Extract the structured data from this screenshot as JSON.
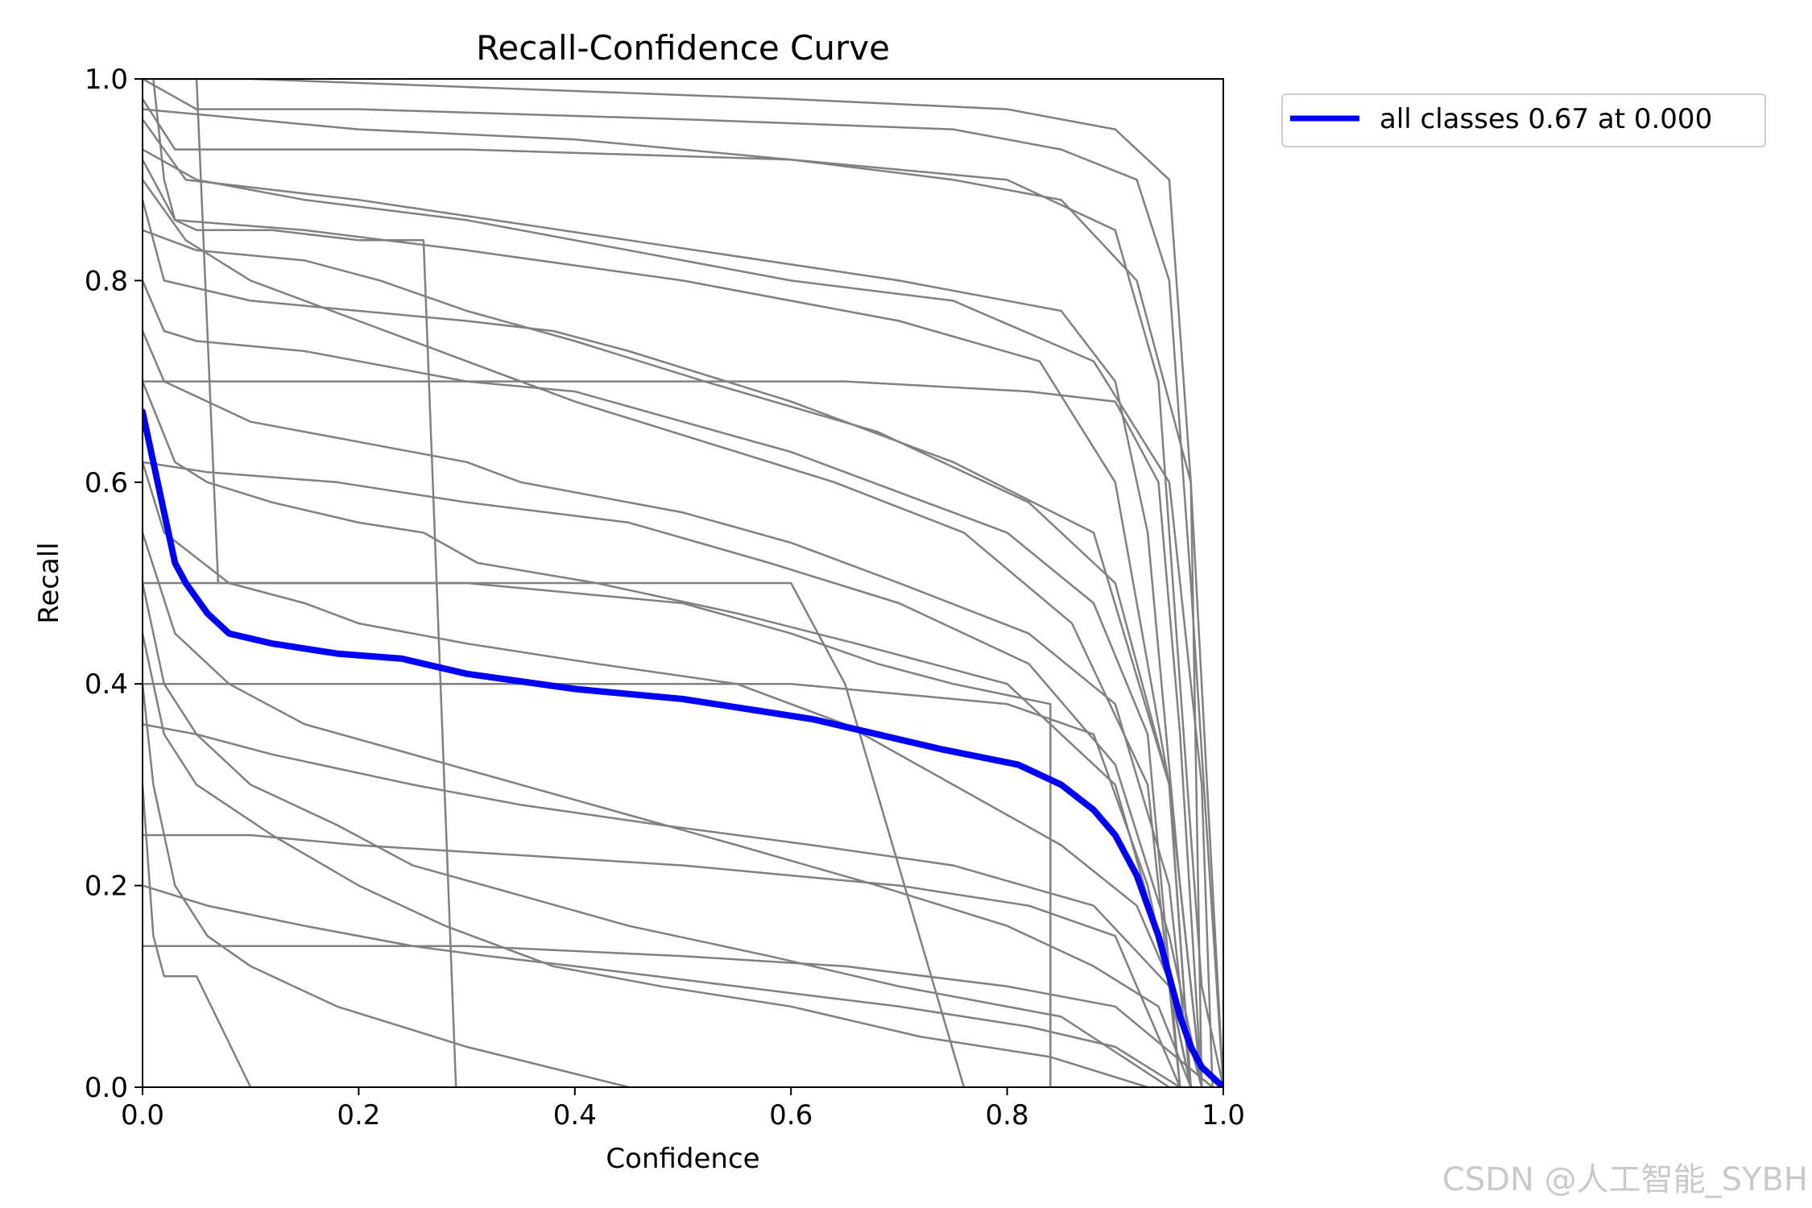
{
  "chart_data": {
    "type": "line",
    "title": "Recall-Confidence Curve",
    "xlabel": "Confidence",
    "ylabel": "Recall",
    "xlim": [
      0,
      1
    ],
    "ylim": [
      0,
      1
    ],
    "x_ticks": [
      "0.0",
      "0.2",
      "0.4",
      "0.6",
      "0.8",
      "1.0"
    ],
    "y_ticks": [
      "0.0",
      "0.2",
      "0.4",
      "0.6",
      "0.8",
      "1.0"
    ],
    "grid": false,
    "legend_position": "outside upper-right",
    "colors": {
      "per_class": "#808080",
      "all_classes": "#0000ff"
    },
    "series": [
      {
        "name": "all classes 0.67 at 0.000",
        "color": "#0000ff",
        "x": [
          0.0,
          0.01,
          0.02,
          0.03,
          0.04,
          0.06,
          0.08,
          0.12,
          0.18,
          0.24,
          0.3,
          0.4,
          0.5,
          0.56,
          0.62,
          0.68,
          0.74,
          0.81,
          0.85,
          0.88,
          0.9,
          0.92,
          0.94,
          0.95,
          0.96,
          0.97,
          0.98,
          0.99,
          1.0
        ],
        "y": [
          0.67,
          0.62,
          0.57,
          0.52,
          0.5,
          0.47,
          0.45,
          0.44,
          0.43,
          0.425,
          0.41,
          0.395,
          0.385,
          0.375,
          0.365,
          0.35,
          0.335,
          0.32,
          0.3,
          0.275,
          0.25,
          0.21,
          0.15,
          0.11,
          0.07,
          0.04,
          0.02,
          0.01,
          0.0
        ]
      }
    ],
    "per_class_curves": [
      {
        "x": [
          0.0,
          0.05,
          0.2,
          0.5,
          0.75,
          0.85,
          0.92,
          0.95,
          0.97,
          1.0
        ],
        "y": [
          1.0,
          0.97,
          0.97,
          0.96,
          0.95,
          0.93,
          0.9,
          0.8,
          0.5,
          0.0
        ]
      },
      {
        "x": [
          0.0,
          0.03,
          0.3,
          0.6,
          0.8,
          0.9,
          0.94,
          0.96,
          0.98,
          1.0
        ],
        "y": [
          0.98,
          0.93,
          0.93,
          0.92,
          0.9,
          0.85,
          0.7,
          0.4,
          0.1,
          0.0
        ]
      },
      {
        "x": [
          0.0,
          0.04,
          0.2,
          0.45,
          0.7,
          0.85,
          0.9,
          0.93,
          0.96,
          0.98
        ],
        "y": [
          0.96,
          0.9,
          0.88,
          0.84,
          0.8,
          0.77,
          0.7,
          0.55,
          0.2,
          0.0
        ]
      },
      {
        "x": [
          0.0,
          0.03,
          0.15,
          0.3,
          0.5,
          0.7,
          0.83,
          0.9,
          0.95,
          0.97
        ],
        "y": [
          0.92,
          0.86,
          0.85,
          0.83,
          0.8,
          0.76,
          0.72,
          0.6,
          0.3,
          0.0
        ]
      },
      {
        "x": [
          0.0,
          0.02,
          0.1,
          0.2,
          0.3,
          0.38,
          0.45,
          0.6,
          0.75,
          0.88,
          0.95,
          0.98
        ],
        "y": [
          0.88,
          0.8,
          0.78,
          0.77,
          0.76,
          0.75,
          0.73,
          0.68,
          0.62,
          0.55,
          0.3,
          0.0
        ]
      },
      {
        "x": [
          0.0,
          0.02,
          0.05,
          0.15,
          0.3,
          0.4,
          0.5,
          0.6,
          0.7,
          0.8,
          0.88,
          0.93,
          0.96
        ],
        "y": [
          0.8,
          0.75,
          0.74,
          0.73,
          0.7,
          0.69,
          0.66,
          0.63,
          0.59,
          0.55,
          0.48,
          0.35,
          0.0
        ]
      },
      {
        "x": [
          0.0,
          0.02,
          0.06,
          0.1,
          0.2,
          0.3,
          0.35,
          0.5,
          0.6,
          0.7,
          0.82,
          0.9,
          0.95,
          0.97
        ],
        "y": [
          0.75,
          0.7,
          0.68,
          0.66,
          0.64,
          0.62,
          0.6,
          0.57,
          0.54,
          0.5,
          0.45,
          0.38,
          0.2,
          0.0
        ]
      },
      {
        "x": [
          0.0,
          0.03,
          0.06,
          0.12,
          0.2,
          0.26,
          0.31,
          0.42,
          0.55,
          0.66,
          0.8,
          0.9,
          0.94,
          0.97
        ],
        "y": [
          0.7,
          0.62,
          0.6,
          0.58,
          0.56,
          0.55,
          0.52,
          0.5,
          0.47,
          0.44,
          0.4,
          0.3,
          0.15,
          0.0
        ]
      },
      {
        "x": [
          0.0,
          0.02,
          0.08,
          0.15,
          0.2,
          0.3,
          0.42,
          0.55,
          0.65,
          0.75,
          0.85,
          0.92,
          0.96,
          0.98
        ],
        "y": [
          0.62,
          0.55,
          0.5,
          0.48,
          0.46,
          0.44,
          0.42,
          0.4,
          0.36,
          0.3,
          0.24,
          0.18,
          0.08,
          0.0
        ]
      },
      {
        "x": [
          0.0,
          0.03,
          0.08,
          0.15,
          0.25,
          0.35,
          0.45,
          0.55,
          0.68,
          0.8,
          0.88,
          0.94,
          0.97
        ],
        "y": [
          0.55,
          0.45,
          0.4,
          0.36,
          0.33,
          0.3,
          0.27,
          0.24,
          0.2,
          0.16,
          0.12,
          0.08,
          0.0
        ]
      },
      {
        "x": [
          0.0,
          0.02,
          0.05,
          0.1,
          0.18,
          0.25,
          0.35,
          0.45,
          0.58,
          0.7,
          0.85,
          0.95
        ],
        "y": [
          0.5,
          0.4,
          0.35,
          0.3,
          0.26,
          0.22,
          0.19,
          0.16,
          0.13,
          0.1,
          0.07,
          0.0
        ]
      },
      {
        "x": [
          0.0,
          0.02,
          0.05,
          0.12,
          0.2,
          0.28,
          0.38,
          0.48,
          0.6,
          0.72,
          0.84,
          0.93
        ],
        "y": [
          0.45,
          0.35,
          0.3,
          0.25,
          0.2,
          0.16,
          0.12,
          0.1,
          0.08,
          0.05,
          0.03,
          0.0
        ]
      },
      {
        "x": [
          0.0,
          0.01,
          0.03,
          0.06,
          0.1,
          0.18,
          0.3,
          0.45
        ],
        "y": [
          0.4,
          0.3,
          0.2,
          0.15,
          0.12,
          0.08,
          0.04,
          0.0
        ]
      },
      {
        "x": [
          0.0,
          0.01,
          0.02,
          0.05,
          0.1
        ],
        "y": [
          0.3,
          0.15,
          0.11,
          0.11,
          0.0
        ]
      },
      {
        "x": [
          0.01,
          0.02,
          0.03,
          0.05,
          0.12,
          0.2,
          0.26,
          0.29
        ],
        "y": [
          1.0,
          0.9,
          0.86,
          0.85,
          0.85,
          0.84,
          0.84,
          0.0
        ]
      },
      {
        "x": [
          0.05,
          0.06,
          0.07,
          0.08,
          0.2,
          0.35,
          0.5,
          0.6,
          0.65,
          0.76
        ],
        "y": [
          1.0,
          0.75,
          0.5,
          0.5,
          0.5,
          0.5,
          0.5,
          0.5,
          0.4,
          0.0
        ]
      },
      {
        "x": [
          0.0,
          0.1,
          0.3,
          0.5,
          0.6,
          0.68,
          0.75,
          0.84,
          0.84
        ],
        "y": [
          0.5,
          0.5,
          0.5,
          0.48,
          0.45,
          0.42,
          0.4,
          0.38,
          0.0
        ]
      },
      {
        "x": [
          0.0,
          0.1,
          0.25,
          0.45,
          0.6,
          0.7,
          0.8,
          0.88,
          0.93,
          0.97
        ],
        "y": [
          0.4,
          0.4,
          0.4,
          0.4,
          0.4,
          0.39,
          0.38,
          0.35,
          0.2,
          0.0
        ]
      },
      {
        "x": [
          0.0,
          0.05,
          0.1,
          0.2,
          0.35,
          0.5,
          0.6,
          0.7,
          0.82,
          0.9,
          0.96
        ],
        "y": [
          0.25,
          0.25,
          0.25,
          0.24,
          0.23,
          0.22,
          0.21,
          0.2,
          0.18,
          0.15,
          0.0
        ]
      },
      {
        "x": [
          0.0,
          0.06,
          0.15,
          0.25,
          0.32,
          0.4,
          0.55,
          0.7,
          0.82,
          0.9,
          0.96
        ],
        "y": [
          0.2,
          0.18,
          0.16,
          0.14,
          0.13,
          0.12,
          0.1,
          0.08,
          0.06,
          0.04,
          0.0
        ]
      },
      {
        "x": [
          0.0,
          0.04,
          0.1,
          0.3,
          0.5,
          0.65,
          0.8,
          0.9,
          0.99
        ],
        "y": [
          0.14,
          0.14,
          0.14,
          0.14,
          0.13,
          0.12,
          0.1,
          0.08,
          0.0
        ]
      },
      {
        "x": [
          0.0,
          0.1,
          0.2,
          0.4,
          0.6,
          0.75,
          0.85,
          0.92,
          0.97,
          1.0
        ],
        "y": [
          0.97,
          0.96,
          0.95,
          0.94,
          0.92,
          0.9,
          0.88,
          0.8,
          0.6,
          0.0
        ]
      },
      {
        "x": [
          0.0,
          0.05,
          0.15,
          0.3,
          0.45,
          0.6,
          0.75,
          0.88,
          0.95,
          0.98,
          0.99
        ],
        "y": [
          0.93,
          0.9,
          0.88,
          0.86,
          0.83,
          0.8,
          0.78,
          0.72,
          0.6,
          0.3,
          0.0
        ]
      },
      {
        "x": [
          0.0,
          0.05,
          0.15,
          0.22,
          0.3,
          0.4,
          0.52,
          0.68,
          0.82,
          0.9,
          0.95,
          0.97
        ],
        "y": [
          0.85,
          0.83,
          0.82,
          0.8,
          0.77,
          0.74,
          0.7,
          0.65,
          0.58,
          0.5,
          0.3,
          0.0
        ]
      },
      {
        "x": [
          0.0,
          0.06,
          0.18,
          0.3,
          0.45,
          0.58,
          0.7,
          0.82,
          0.9,
          0.95,
          0.98
        ],
        "y": [
          0.62,
          0.61,
          0.6,
          0.58,
          0.56,
          0.52,
          0.48,
          0.42,
          0.32,
          0.15,
          0.0
        ]
      },
      {
        "x": [
          0.0,
          0.05,
          0.12,
          0.25,
          0.35,
          0.48,
          0.62,
          0.75,
          0.88,
          0.95,
          0.97
        ],
        "y": [
          0.36,
          0.35,
          0.33,
          0.3,
          0.28,
          0.26,
          0.24,
          0.22,
          0.18,
          0.1,
          0.0
        ]
      },
      {
        "x": [
          0.0,
          0.1,
          0.35,
          0.6,
          0.8,
          0.9,
          0.95,
          0.97,
          0.98
        ],
        "y": [
          1.0,
          1.0,
          0.99,
          0.98,
          0.97,
          0.95,
          0.9,
          0.6,
          0.0
        ]
      },
      {
        "x": [
          0.0,
          0.08,
          0.25,
          0.45,
          0.65,
          0.82,
          0.9,
          0.94,
          0.96,
          0.98
        ],
        "y": [
          0.7,
          0.7,
          0.7,
          0.7,
          0.7,
          0.69,
          0.68,
          0.6,
          0.35,
          0.0
        ]
      },
      {
        "x": [
          0.0,
          0.04,
          0.1,
          0.2,
          0.3,
          0.4,
          0.52,
          0.64,
          0.76,
          0.86,
          0.93,
          0.96
        ],
        "y": [
          0.9,
          0.84,
          0.8,
          0.76,
          0.72,
          0.68,
          0.64,
          0.6,
          0.55,
          0.46,
          0.3,
          0.0
        ]
      }
    ]
  },
  "watermark_text": "CSDN @人工智能_SYBH"
}
